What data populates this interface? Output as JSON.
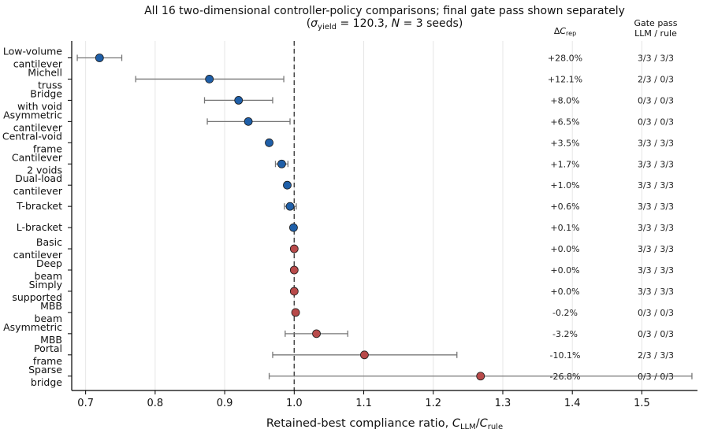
{
  "chart_data": {
    "type": "scatter",
    "title_line1": "All 16 two-dimensional controller-policy comparisons; final gate pass shown separately",
    "title_line2_parts": [
      "(",
      "σ",
      "yield",
      " = 120.3, ",
      "N",
      " = 3 seeds)"
    ],
    "xlabel_parts": [
      "Retained-best compliance ratio, ",
      "C",
      "LLM",
      "/",
      "C",
      "rule"
    ],
    "column_headers": {
      "delta_parts": [
        "Δ",
        "C",
        "rep"
      ],
      "gate_line1": "Gate pass",
      "gate_line2": "LLM / rule"
    },
    "xlim": [
      0.68,
      1.58
    ],
    "xticks": [
      0.7,
      0.8,
      0.9,
      1.0,
      1.1,
      1.2,
      1.3,
      1.4,
      1.5
    ],
    "xtick_labels": [
      "0.7",
      "0.8",
      "0.9",
      "1.0",
      "1.1",
      "1.2",
      "1.3",
      "1.4",
      "1.5"
    ],
    "reference_x": 1.0,
    "grid": "vertical",
    "colors": {
      "blue": "#1f5fa8",
      "red": "#b84a4a",
      "errorbar": "#777777",
      "reference": "#444444",
      "grid": "#e6e6e6"
    },
    "cases": [
      {
        "label": [
          "Low-volume",
          "cantilever"
        ],
        "x": 0.72,
        "err": [
          0.688,
          0.752
        ],
        "color": "blue",
        "delta": "+28.0%",
        "gate": "3/3 / 3/3"
      },
      {
        "label": [
          "Michell",
          "truss"
        ],
        "x": 0.878,
        "err": [
          0.772,
          0.985
        ],
        "color": "blue",
        "delta": "+12.1%",
        "gate": "2/3 / 0/3"
      },
      {
        "label": [
          "Bridge",
          "with void"
        ],
        "x": 0.92,
        "err": [
          0.871,
          0.969
        ],
        "color": "blue",
        "delta": "+8.0%",
        "gate": "0/3 / 0/3"
      },
      {
        "label": [
          "Asymmetric",
          "cantilever"
        ],
        "x": 0.934,
        "err": [
          0.875,
          0.994
        ],
        "color": "blue",
        "delta": "+6.5%",
        "gate": "0/3 / 0/3"
      },
      {
        "label": [
          "Central-void",
          "frame"
        ],
        "x": 0.964,
        "err": null,
        "color": "blue",
        "delta": "+3.5%",
        "gate": "3/3 / 3/3"
      },
      {
        "label": [
          "Cantilever",
          "2 voids"
        ],
        "x": 0.982,
        "err": [
          0.973,
          0.991
        ],
        "color": "blue",
        "delta": "+1.7%",
        "gate": "3/3 / 3/3"
      },
      {
        "label": [
          "Dual-load",
          "cantilever"
        ],
        "x": 0.99,
        "err": null,
        "color": "blue",
        "delta": "+1.0%",
        "gate": "3/3 / 3/3"
      },
      {
        "label": [
          "T-bracket"
        ],
        "x": 0.994,
        "err": [
          0.986,
          1.003
        ],
        "color": "blue",
        "delta": "+0.6%",
        "gate": "3/3 / 3/3"
      },
      {
        "label": [
          "L-bracket"
        ],
        "x": 0.999,
        "err": null,
        "color": "blue",
        "delta": "+0.1%",
        "gate": "3/3 / 3/3"
      },
      {
        "label": [
          "Basic",
          "cantilever"
        ],
        "x": 1.0,
        "err": null,
        "color": "red",
        "delta": "+0.0%",
        "gate": "3/3 / 3/3"
      },
      {
        "label": [
          "Deep",
          "beam"
        ],
        "x": 1.0,
        "err": null,
        "color": "red",
        "delta": "+0.0%",
        "gate": "3/3 / 3/3"
      },
      {
        "label": [
          "Simply",
          "supported"
        ],
        "x": 1.0,
        "err": null,
        "color": "red",
        "delta": "+0.0%",
        "gate": "3/3 / 3/3"
      },
      {
        "label": [
          "MBB",
          "beam"
        ],
        "x": 1.002,
        "err": null,
        "color": "red",
        "delta": "-0.2%",
        "gate": "0/3 / 0/3"
      },
      {
        "label": [
          "Asymmetric",
          "MBB"
        ],
        "x": 1.032,
        "err": [
          0.987,
          1.077
        ],
        "color": "red",
        "delta": "-3.2%",
        "gate": "0/3 / 0/3"
      },
      {
        "label": [
          "Portal",
          "frame"
        ],
        "x": 1.101,
        "err": [
          0.969,
          1.234
        ],
        "color": "red",
        "delta": "-10.1%",
        "gate": "2/3 / 3/3"
      },
      {
        "label": [
          "Sparse",
          "bridge"
        ],
        "x": 1.268,
        "err": [
          0.964,
          1.572
        ],
        "color": "red",
        "delta": "-26.8%",
        "gate": "0/3 / 0/3"
      }
    ]
  }
}
